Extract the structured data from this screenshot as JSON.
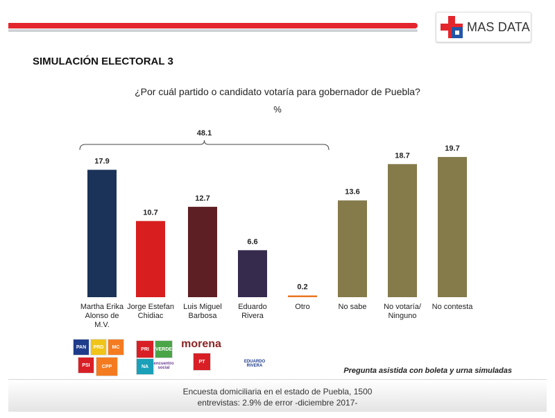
{
  "header": {
    "brand": "MAS DATA"
  },
  "title": "SIMULACIÓN ELECTORAL 3",
  "footnote": "Pregunta asistida con boleta y urna simuladas",
  "footer": {
    "line1": "Encuesta domiciliaria en el estado de Puebla, 1500",
    "line2": "entrevistas: 2.9% de error -diciembre 2017-"
  },
  "party_logos": [
    {
      "text": "PAN",
      "color": "#1f3c8c"
    },
    {
      "text": "PRD",
      "color": "#f0c419"
    },
    {
      "text": "MC",
      "color": "#f47b20"
    },
    {
      "text": "PSI",
      "color": "#d91f26"
    },
    {
      "text": "CPP",
      "color": "#f47b20"
    },
    {
      "text": "PRI",
      "color": "#d91f26"
    },
    {
      "text": "VERDE",
      "color": "#4aa548"
    },
    {
      "text": "NA",
      "color": "#1aa0b8"
    },
    {
      "text": "encuentro social",
      "color": "#6a3d92"
    },
    {
      "text": "morena",
      "color": "#8b2323"
    },
    {
      "text": "PT",
      "color": "#d91f26"
    },
    {
      "text": "EDUARDO RIVERA",
      "color": "#1f3c8c"
    }
  ],
  "chart_data": {
    "type": "bar",
    "title": "¿Por cuál partido o candidato votaría para gobernador de Puebla?",
    "unit": "%",
    "categories": [
      "Martha Erika Alonso de M.V.",
      "Jorge Estefan Chidiac",
      "Luis Miguel Barbosa",
      "Eduardo Rivera",
      "Otro",
      "No sabe",
      "No votaría/ Ninguno",
      "No contesta"
    ],
    "category_lines": [
      [
        "Martha Erika",
        "Alonso de",
        "M.V."
      ],
      [
        "Jorge Estefan",
        "Chidiac"
      ],
      [
        "Luis Miguel",
        "Barbosa"
      ],
      [
        "Eduardo",
        "Rivera"
      ],
      [
        "Otro"
      ],
      [
        "No sabe"
      ],
      [
        "No votaría/",
        "Ninguno"
      ],
      [
        "No contesta"
      ]
    ],
    "values": [
      17.9,
      10.7,
      12.7,
      6.6,
      0.2,
      13.6,
      18.7,
      19.7
    ],
    "colors": [
      "#1b3358",
      "#d81e1e",
      "#5e1f24",
      "#362a4d",
      "#e87722",
      "#857a4a",
      "#857a4a",
      "#857a4a"
    ],
    "bracket": {
      "label": "48.1",
      "from_category": 0,
      "to_category": 4
    },
    "ylim": [
      0,
      20
    ],
    "grid": false,
    "legend": "none"
  }
}
